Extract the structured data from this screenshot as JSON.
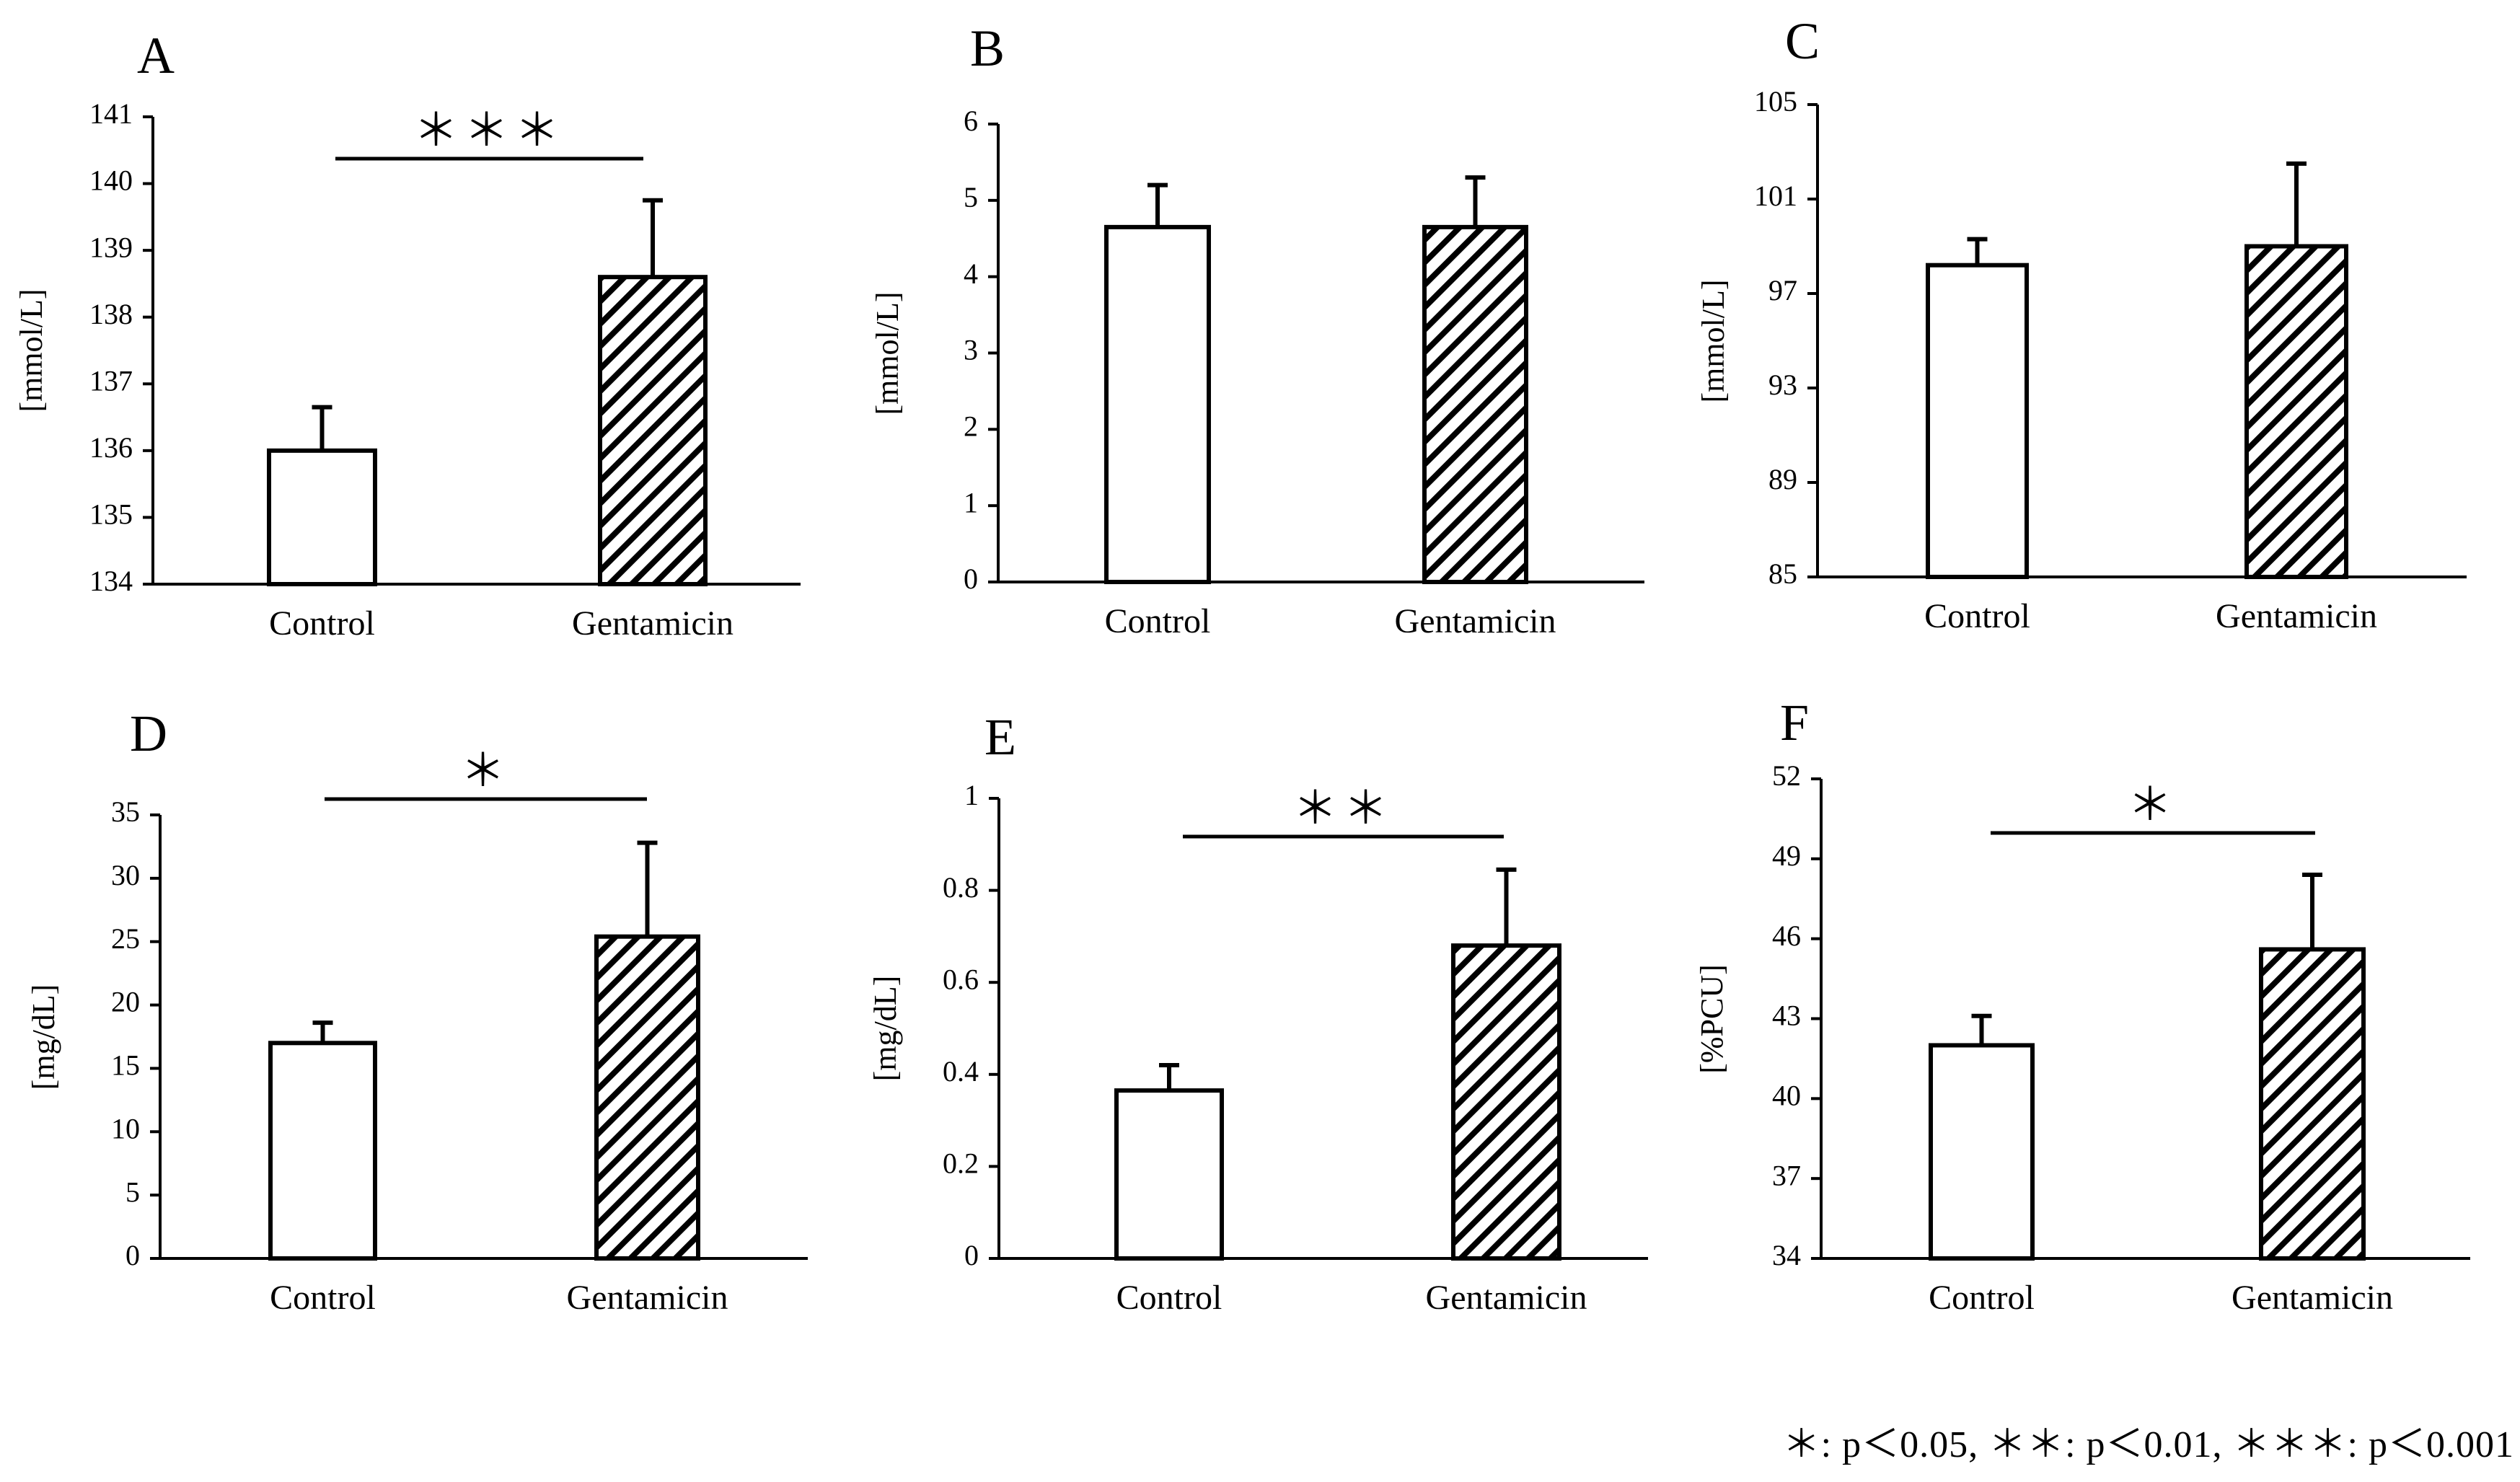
{
  "footnote": "＊: p＜0.05, ＊＊: p＜0.01, ＊＊＊: p＜0.001",
  "chart_data": [
    {
      "panel": "A",
      "type": "bar",
      "categories": [
        "Control",
        "Gentamicin"
      ],
      "values": [
        136.0,
        138.6
      ],
      "errors": [
        0.65,
        1.15
      ],
      "ylabel": "[mmol/L]",
      "ylim": [
        134,
        141
      ],
      "yticks": [
        "134",
        "135",
        "136",
        "137",
        "138",
        "139",
        "140",
        "141"
      ],
      "significance": "＊＊＊"
    },
    {
      "panel": "B",
      "type": "bar",
      "categories": [
        "Control",
        "Gentamicin"
      ],
      "values": [
        4.65,
        4.65
      ],
      "errors": [
        0.55,
        0.65
      ],
      "ylabel": "[mmol/L]",
      "ylim": [
        0,
        6
      ],
      "yticks": [
        "0",
        "1",
        "2",
        "3",
        "4",
        "5",
        "6"
      ],
      "significance": ""
    },
    {
      "panel": "C",
      "type": "bar",
      "categories": [
        "Control",
        "Gentamicin"
      ],
      "values": [
        98.2,
        99.0
      ],
      "errors": [
        1.1,
        3.5
      ],
      "ylabel": "[mmol/L]",
      "ylim": [
        85,
        105
      ],
      "yticks": [
        "85",
        "89",
        "93",
        "97",
        "101",
        "105"
      ],
      "significance": ""
    },
    {
      "panel": "D",
      "type": "bar",
      "categories": [
        "Control",
        "Gentamicin"
      ],
      "values": [
        17.0,
        25.4
      ],
      "errors": [
        1.6,
        7.4
      ],
      "ylabel": "[mg/dL]",
      "ylim": [
        0,
        35
      ],
      "yticks": [
        "0",
        "5",
        "10",
        "15",
        "20",
        "25",
        "30",
        "35"
      ],
      "significance": "＊"
    },
    {
      "panel": "E",
      "type": "bar",
      "categories": [
        "Control",
        "Gentamicin"
      ],
      "values": [
        0.365,
        0.68
      ],
      "errors": [
        0.055,
        0.165
      ],
      "ylabel": "[mg/dL]",
      "ylim": [
        0,
        1
      ],
      "yticks": [
        "0",
        "0.2",
        "0.4",
        "0.6",
        "0.8",
        "1"
      ],
      "significance": "＊＊"
    },
    {
      "panel": "F",
      "type": "bar",
      "categories": [
        "Control",
        "Gentamicin"
      ],
      "values": [
        42.0,
        45.6
      ],
      "errors": [
        1.1,
        2.8
      ],
      "ylabel": "[%PCU]",
      "ylim": [
        34,
        52
      ],
      "yticks": [
        "34",
        "37",
        "40",
        "43",
        "46",
        "49",
        "52"
      ],
      "significance": "＊"
    }
  ]
}
